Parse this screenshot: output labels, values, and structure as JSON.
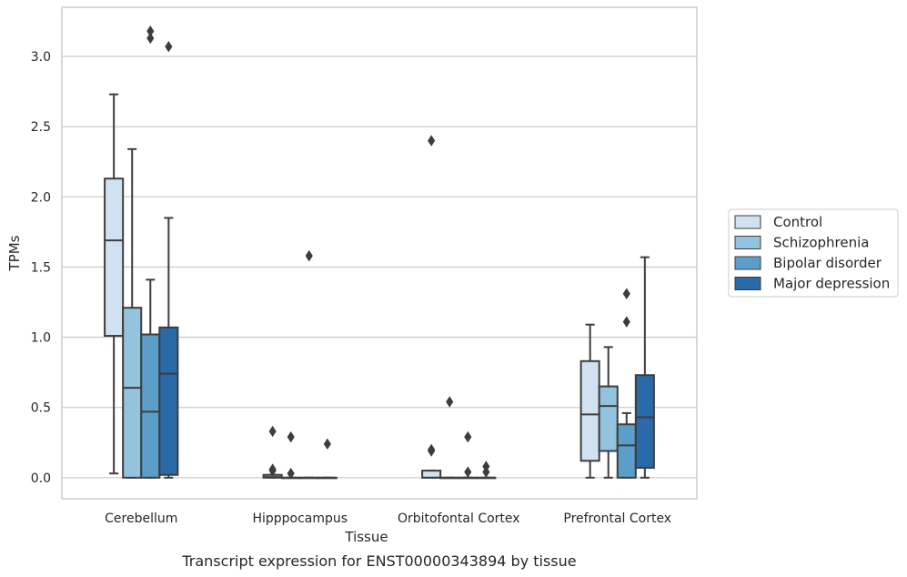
{
  "caption": "Transcript expression for ENST00000343894 by tissue",
  "chart_data": {
    "type": "box",
    "xlabel": "Tissue",
    "ylabel": "TPMs",
    "ylim": [
      -0.15,
      3.35
    ],
    "yticks": [
      "0.0",
      "0.5",
      "1.0",
      "1.5",
      "2.0",
      "2.5",
      "3.0"
    ],
    "grid": "horizontal",
    "legend_position": "right",
    "categories": [
      "Cerebellum",
      "Hipppocampus",
      "Orbitofontal Cortex",
      "Prefrontal Cortex"
    ],
    "series": [
      {
        "name": "Control",
        "color": "#d0e2f1",
        "boxes": [
          {
            "whisker_low": 0.03,
            "q1": 1.01,
            "median": 1.69,
            "q3": 2.13,
            "whisker_high": 2.73,
            "outliers": []
          },
          {
            "whisker_low": 0.0,
            "q1": 0.0,
            "median": 0.005,
            "q3": 0.02,
            "whisker_high": 0.02,
            "outliers": [
              0.33,
              0.06,
              0.05
            ]
          },
          {
            "whisker_low": 0.0,
            "q1": 0.0,
            "median": 0.0,
            "q3": 0.05,
            "whisker_high": 0.05,
            "outliers": [
              2.4,
              0.2,
              0.19
            ]
          },
          {
            "whisker_low": 0.0,
            "q1": 0.12,
            "median": 0.45,
            "q3": 0.83,
            "whisker_high": 1.09,
            "outliers": []
          }
        ]
      },
      {
        "name": "Schizophrenia",
        "color": "#93c3df",
        "boxes": [
          {
            "whisker_low": 0.0,
            "q1": 0.0,
            "median": 0.64,
            "q3": 1.21,
            "whisker_high": 2.34,
            "outliers": []
          },
          {
            "whisker_low": 0.0,
            "q1": 0.0,
            "median": 0.0,
            "q3": 0.0,
            "whisker_high": 0.0,
            "outliers": [
              0.29,
              0.03
            ]
          },
          {
            "whisker_low": 0.0,
            "q1": 0.0,
            "median": 0.0,
            "q3": 0.0,
            "whisker_high": 0.0,
            "outliers": [
              0.54
            ]
          },
          {
            "whisker_low": 0.0,
            "q1": 0.19,
            "median": 0.51,
            "q3": 0.65,
            "whisker_high": 0.93,
            "outliers": []
          }
        ]
      },
      {
        "name": "Bipolar disorder",
        "color": "#5a9ec9",
        "boxes": [
          {
            "whisker_low": 0.0,
            "q1": 0.0,
            "median": 0.47,
            "q3": 1.02,
            "whisker_high": 1.41,
            "outliers": [
              3.18,
              3.13
            ]
          },
          {
            "whisker_low": 0.0,
            "q1": 0.0,
            "median": 0.0,
            "q3": 0.0,
            "whisker_high": 0.0,
            "outliers": [
              1.58
            ]
          },
          {
            "whisker_low": 0.0,
            "q1": 0.0,
            "median": 0.0,
            "q3": 0.0,
            "whisker_high": 0.0,
            "outliers": [
              0.29,
              0.04
            ]
          },
          {
            "whisker_low": 0.0,
            "q1": 0.0,
            "median": 0.23,
            "q3": 0.38,
            "whisker_high": 0.46,
            "outliers": [
              1.31,
              1.11
            ]
          }
        ]
      },
      {
        "name": "Major depression",
        "color": "#2b6aa8",
        "boxes": [
          {
            "whisker_low": 0.0,
            "q1": 0.02,
            "median": 0.74,
            "q3": 1.07,
            "whisker_high": 1.85,
            "outliers": [
              3.07
            ]
          },
          {
            "whisker_low": 0.0,
            "q1": 0.0,
            "median": 0.0,
            "q3": 0.0,
            "whisker_high": 0.0,
            "outliers": [
              0.24
            ]
          },
          {
            "whisker_low": 0.0,
            "q1": 0.0,
            "median": 0.0,
            "q3": 0.0,
            "whisker_high": 0.0,
            "outliers": [
              0.08,
              0.04
            ]
          },
          {
            "whisker_low": 0.0,
            "q1": 0.07,
            "median": 0.43,
            "q3": 0.73,
            "whisker_high": 1.57,
            "outliers": []
          }
        ]
      }
    ]
  }
}
